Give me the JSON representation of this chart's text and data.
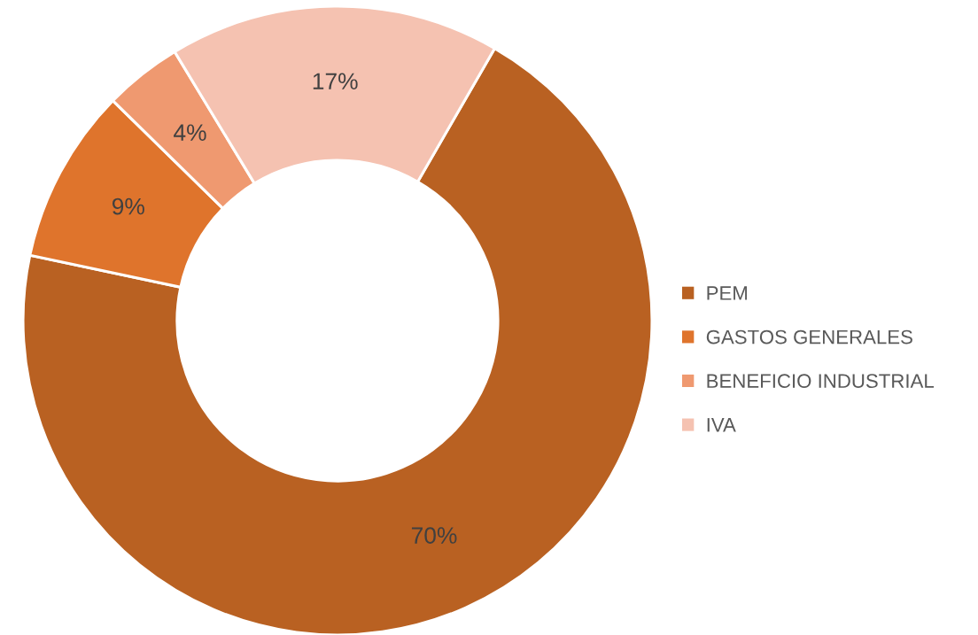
{
  "chart_data": {
    "type": "donut",
    "categories": [
      "PEM",
      "GASTOS GENERALES",
      "BENEFICIO INDUSTRIAL",
      "IVA"
    ],
    "values": [
      70,
      9,
      4,
      17
    ],
    "colors": [
      "#b96122",
      "#df742c",
      "#ef9970",
      "#f5c2b1"
    ],
    "value_labels": [
      "70%",
      "9%",
      "4%",
      "17%"
    ],
    "legend": "right"
  }
}
